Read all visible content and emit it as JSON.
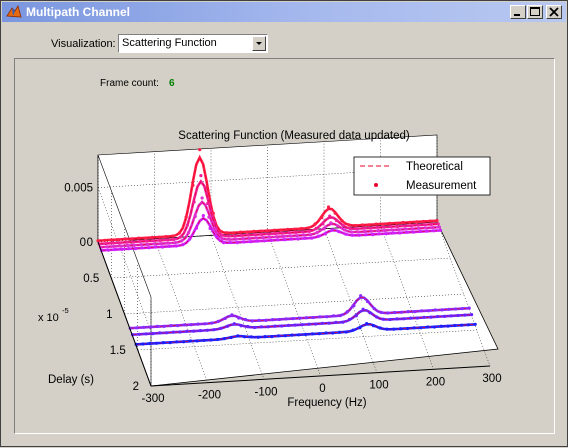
{
  "window": {
    "title": "Multipath Channel",
    "icon": "matlab-icon",
    "controls": [
      "minimize-icon",
      "maximize-icon",
      "close-icon"
    ]
  },
  "visualization": {
    "label": "Visualization:",
    "selected": "Scattering Function"
  },
  "frame": {
    "label": "Frame count:",
    "value": "6",
    "value_color": "#008000"
  },
  "chart_data": {
    "type": "surface-3d",
    "title": "Scattering Function (Measured data updated)",
    "xlabel": "Frequency (Hz)",
    "ylabel": "Delay (s)",
    "ylabel_exponent": "x 10",
    "ylabel_exponent_power": "-5",
    "x_ticks": [
      "-300",
      "-200",
      "-100",
      "0",
      "100",
      "200",
      "300"
    ],
    "y_ticks": [
      "0",
      "0.5",
      "1",
      "1.5",
      "2"
    ],
    "z_ticks": [
      "0",
      "0.005"
    ],
    "xlim": [
      -300,
      300
    ],
    "ylim": [
      0,
      2
    ],
    "zlim": [
      0,
      0.008
    ],
    "grid": true,
    "legend_position": "top-right",
    "legend": [
      {
        "name": "Theoretical",
        "style": "dashed-line",
        "color": "#e8002c"
      },
      {
        "name": "Measurement",
        "style": "point",
        "color": "#e8002c"
      }
    ],
    "paths": [
      {
        "delay": 0.0,
        "color": "#ff1e48",
        "peaks": [
          {
            "x": -120,
            "z": 0.0071
          },
          {
            "x": 110,
            "z": 0.0017
          }
        ]
      },
      {
        "delay": 0.05,
        "color": "#f0209a",
        "peaks": [
          {
            "x": -120,
            "z": 0.0052
          },
          {
            "x": 110,
            "z": 0.0012
          }
        ]
      },
      {
        "delay": 0.1,
        "color": "#e030d0",
        "peaks": [
          {
            "x": -120,
            "z": 0.0036
          },
          {
            "x": 110,
            "z": 0.0009
          }
        ]
      },
      {
        "delay": 0.15,
        "color": "#d020ff",
        "peaks": [
          {
            "x": -120,
            "z": 0.0024
          },
          {
            "x": 110,
            "z": 0.0006
          }
        ]
      },
      {
        "delay": 1.35,
        "color": "#8a2aff",
        "peaks": [
          {
            "x": -120,
            "z": 0.0006
          },
          {
            "x": 110,
            "z": 0.0016
          }
        ]
      },
      {
        "delay": 1.45,
        "color": "#6a22ff",
        "peaks": [
          {
            "x": -120,
            "z": 0.0004
          },
          {
            "x": 110,
            "z": 0.001
          }
        ]
      },
      {
        "delay": 1.6,
        "color": "#1e1eff",
        "peaks": [
          {
            "x": -120,
            "z": 0.0002
          },
          {
            "x": 110,
            "z": 0.0006
          }
        ]
      }
    ]
  }
}
